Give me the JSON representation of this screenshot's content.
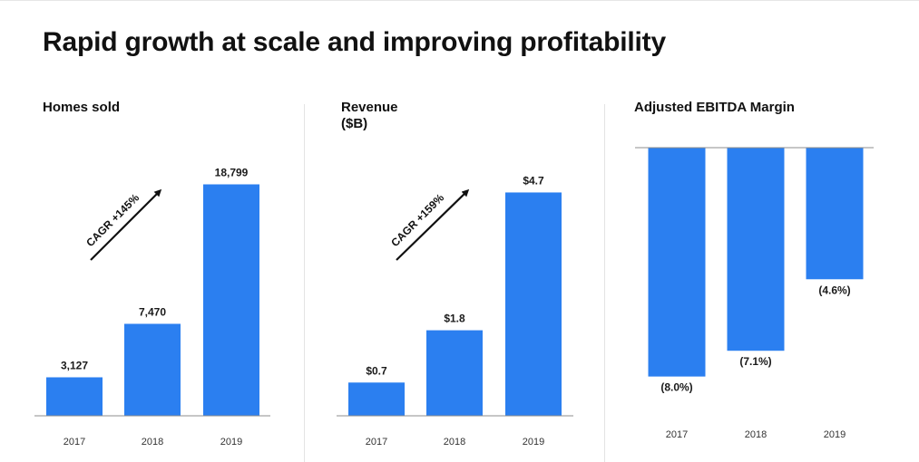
{
  "page": {
    "title": "Rapid growth at scale and improving profitability"
  },
  "chart_data": [
    {
      "type": "bar",
      "title": "Homes sold",
      "categories": [
        "2017",
        "2018",
        "2019"
      ],
      "values": [
        3127,
        7470,
        18799
      ],
      "value_labels": [
        "3,127",
        "7,470",
        "18,799"
      ],
      "annotation": "CAGR +145%",
      "ylim": [
        0,
        22000
      ]
    },
    {
      "type": "bar",
      "title": "Revenue",
      "subtitle": "($B)",
      "categories": [
        "2017",
        "2018",
        "2019"
      ],
      "values": [
        0.7,
        1.8,
        4.7
      ],
      "value_labels": [
        "$0.7",
        "$1.8",
        "$4.7"
      ],
      "annotation": "CAGR +159%",
      "ylim": [
        0,
        5.7
      ]
    },
    {
      "type": "bar",
      "title": "Adjusted EBITDA Margin",
      "categories": [
        "2017",
        "2018",
        "2019"
      ],
      "values": [
        -8.0,
        -7.1,
        -4.6
      ],
      "value_labels": [
        "(8.0%)",
        "(7.1%)",
        "(4.6%)"
      ],
      "ylim": [
        -9.5,
        0
      ],
      "bar_color": "#2b7ff0"
    }
  ]
}
